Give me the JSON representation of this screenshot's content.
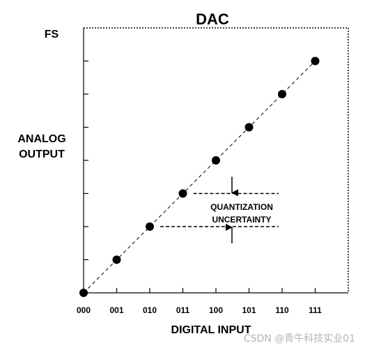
{
  "chart_data": {
    "type": "scatter",
    "title": "DAC",
    "xlabel": "DIGITAL INPUT",
    "ylabel_lines": [
      "ANALOG",
      "OUTPUT"
    ],
    "fs_label": "FS",
    "categories": [
      "000",
      "001",
      "010",
      "011",
      "100",
      "101",
      "110",
      "111"
    ],
    "values": [
      0,
      1,
      2,
      3,
      4,
      5,
      6,
      7
    ],
    "ylim": [
      0,
      7
    ],
    "y_tick_count": 8,
    "trend_line": "dashed, through all points",
    "annotation_lines": [
      "QUANTIZATION",
      "UNCERTAINTY"
    ],
    "annotation_between_levels": [
      2,
      3
    ],
    "grid": false
  },
  "watermark": "CSDN @青牛科技实业01"
}
